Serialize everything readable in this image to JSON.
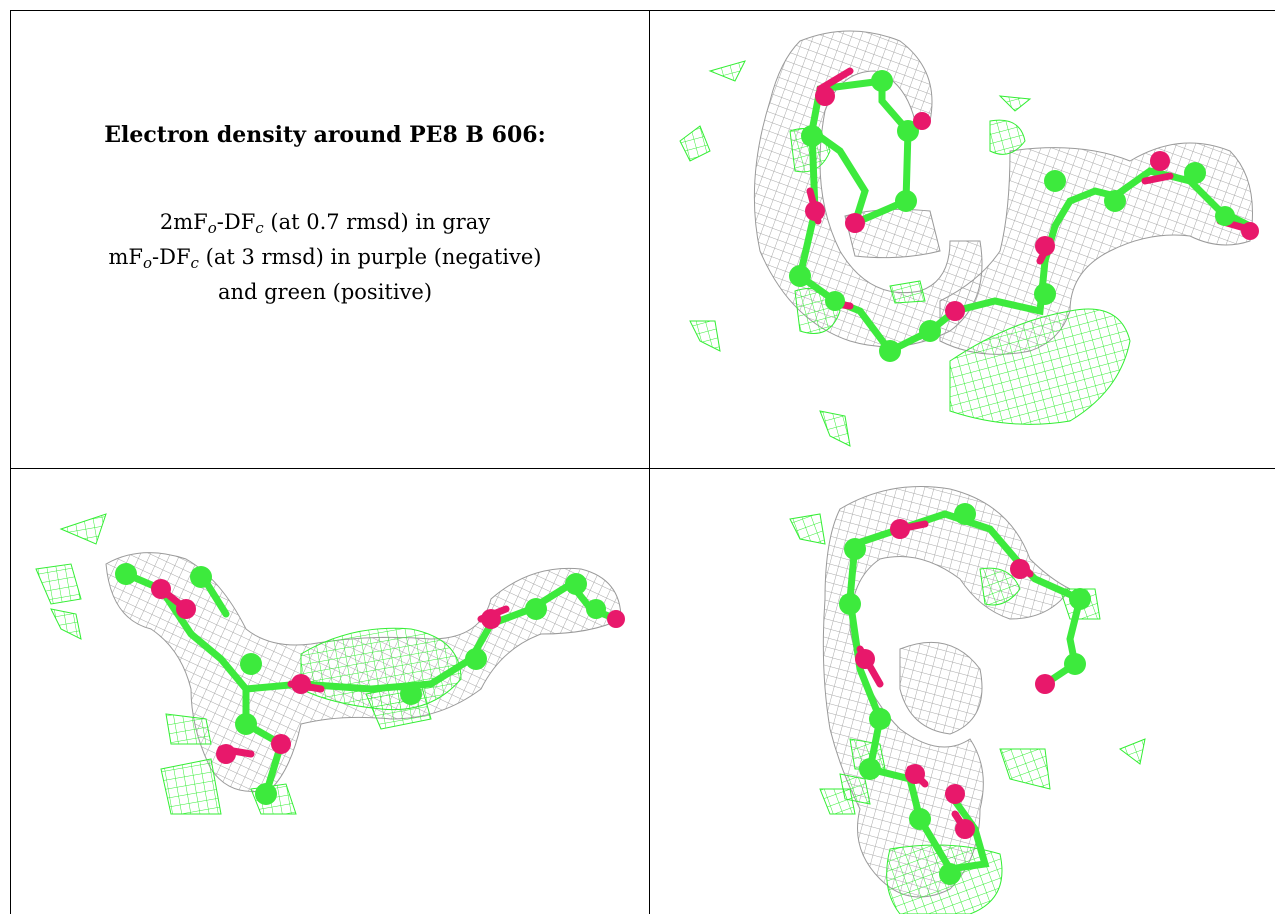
{
  "caption": {
    "title": "Electron density around PE8 B 606:",
    "line1": {
      "a": "2mF",
      "s1": "o",
      "b": "-DF",
      "s2": "c",
      "c": " (at 0.7 rmsd) in gray"
    },
    "line2": {
      "a": "mF",
      "s1": "o",
      "b": "-DF",
      "s2": "c",
      "c": " (at 3 rmsd) in purple (negative)"
    },
    "line3": "and green (positive)"
  },
  "colors": {
    "mesh_gray": "#a8a8a8",
    "mesh_green": "#33ee33",
    "carbon": "#3dea3d",
    "oxygen": "#e8186b"
  },
  "panels": [
    {
      "name": "view-top-right"
    },
    {
      "name": "view-bottom-left"
    },
    {
      "name": "view-bottom-right"
    }
  ]
}
